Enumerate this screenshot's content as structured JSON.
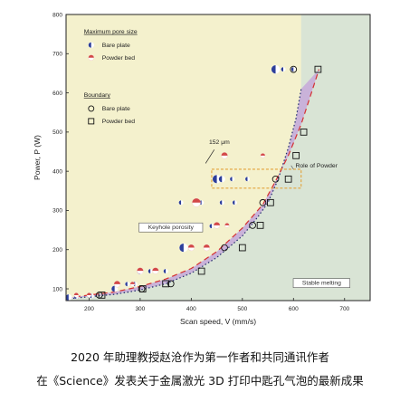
{
  "chart_data": {
    "type": "scatter",
    "title": "",
    "xlabel": "Scan speed, V (mm/s)",
    "ylabel": "Power, P (W)",
    "xlim": [
      155,
      750
    ],
    "ylim": [
      70,
      800
    ],
    "xticks": [
      "200",
      "300",
      "400",
      "500",
      "600",
      "700"
    ],
    "yticks": [
      "100",
      "200",
      "300",
      "400",
      "500",
      "600",
      "700",
      "800"
    ],
    "grid": false,
    "regions": [
      {
        "name": "keyhole_porosity_region",
        "color": "#f4f1cd"
      },
      {
        "name": "stable_melting_region",
        "color": "#d9e4d5"
      },
      {
        "name": "role_of_powder_band",
        "color": "#c9b2d9"
      }
    ],
    "boundary_curves": {
      "bare_plate": [
        [
          155,
          74
        ],
        [
          200,
          80
        ],
        [
          250,
          86
        ],
        [
          300,
          97
        ],
        [
          350,
          113
        ],
        [
          400,
          140
        ],
        [
          450,
          180
        ],
        [
          500,
          235
        ],
        [
          530,
          283
        ],
        [
          550,
          320
        ],
        [
          570,
          380
        ],
        [
          590,
          460
        ],
        [
          605,
          535
        ],
        [
          615,
          610
        ]
      ],
      "powder_bed": [
        [
          155,
          77
        ],
        [
          200,
          84
        ],
        [
          250,
          92
        ],
        [
          300,
          106
        ],
        [
          350,
          125
        ],
        [
          400,
          152
        ],
        [
          450,
          195
        ],
        [
          500,
          255
        ],
        [
          540,
          315
        ],
        [
          565,
          375
        ],
        [
          590,
          440
        ],
        [
          615,
          520
        ],
        [
          635,
          600
        ],
        [
          650,
          660
        ]
      ]
    },
    "series": [
      {
        "name": "Bare plate",
        "group": "Maximum pore size",
        "marker": "half-circle",
        "points": [
          [
            160,
            78
          ],
          [
            175,
            80
          ],
          [
            205,
            82
          ],
          [
            250,
            100
          ],
          [
            275,
            112
          ],
          [
            290,
            112
          ],
          [
            300,
            145
          ],
          [
            320,
            145
          ],
          [
            350,
            145
          ],
          [
            385,
            205
          ],
          [
            400,
            205
          ],
          [
            440,
            260
          ],
          [
            380,
            320
          ],
          [
            420,
            320
          ],
          [
            460,
            320
          ],
          [
            485,
            320
          ],
          [
            450,
            380
          ],
          [
            460,
            380
          ],
          [
            480,
            380
          ],
          [
            510,
            380
          ],
          [
            565,
            660
          ],
          [
            580,
            660
          ],
          [
            600,
            660
          ]
        ],
        "sizes": [
          2,
          1,
          1,
          2,
          1,
          1,
          2,
          1,
          1,
          3,
          2,
          1,
          1,
          1,
          1,
          1,
          3,
          2,
          1,
          1,
          3,
          1,
          1
        ]
      },
      {
        "name": "Powder bed",
        "group": "Maximum pore size",
        "marker": "half-circle",
        "points": [
          [
            175,
            84
          ],
          [
            200,
            84
          ],
          [
            255,
            112
          ],
          [
            285,
            112
          ],
          [
            300,
            146
          ],
          [
            330,
            146
          ],
          [
            400,
            205
          ],
          [
            430,
            205
          ],
          [
            450,
            262
          ],
          [
            470,
            262
          ],
          [
            410,
            320
          ],
          [
            465,
            440
          ],
          [
            540,
            440
          ]
        ],
        "sizes": [
          1,
          1,
          2,
          1,
          2,
          2,
          2,
          2,
          2,
          1,
          3,
          2,
          1
        ]
      },
      {
        "name": "Bare plate",
        "group": "Boundary",
        "marker": "open-circle",
        "points": [
          [
            220,
            84
          ],
          [
            303,
            100
          ],
          [
            360,
            113
          ],
          [
            465,
            205
          ],
          [
            520,
            262
          ],
          [
            540,
            320
          ],
          [
            565,
            380
          ],
          [
            600,
            660
          ]
        ]
      },
      {
        "name": "Powder bed",
        "group": "Boundary",
        "marker": "open-square",
        "points": [
          [
            225,
            84
          ],
          [
            305,
            100
          ],
          [
            350,
            113
          ],
          [
            420,
            145
          ],
          [
            500,
            205
          ],
          [
            535,
            262
          ],
          [
            555,
            320
          ],
          [
            590,
            380
          ],
          [
            605,
            440
          ],
          [
            620,
            500
          ],
          [
            648,
            660
          ]
        ]
      }
    ],
    "annotations": [
      {
        "text": "152 μm",
        "x": 455,
        "y": 470
      },
      {
        "text": "Role of Powder",
        "x": 645,
        "y": 410
      },
      {
        "text": "Keyhole porosity",
        "x": 360,
        "y": 252
      },
      {
        "text": "Stable melting",
        "x": 655,
        "y": 110
      }
    ],
    "legend": {
      "position": "top-left",
      "groups": [
        {
          "title": "Maximum pore size",
          "items": [
            "Bare plate",
            "Powder bed"
          ]
        },
        {
          "title": "Boundary",
          "items": [
            "Bare plate",
            "Powder bed"
          ]
        }
      ]
    },
    "highlight_box": {
      "x": [
        440,
        615
      ],
      "y": [
        357,
        405
      ]
    }
  },
  "colors": {
    "bare_plate_fill": "#2c3e9a",
    "powder_bed_fill": "#d34848",
    "keyhole_region": "#f4f1cd",
    "stable_region": "#d9e4d5",
    "powder_band": "#c9b2d9",
    "bare_curve": "#1e2b6a",
    "powder_curve": "#d53030",
    "highlight": "#e2a23a"
  },
  "caption": {
    "line1": "2020 年助理教授赵沧作为第一作者和共同通讯作者",
    "line2": "在《Science》发表关于金属激光 3D 打印中匙孔气泡的最新成果"
  }
}
